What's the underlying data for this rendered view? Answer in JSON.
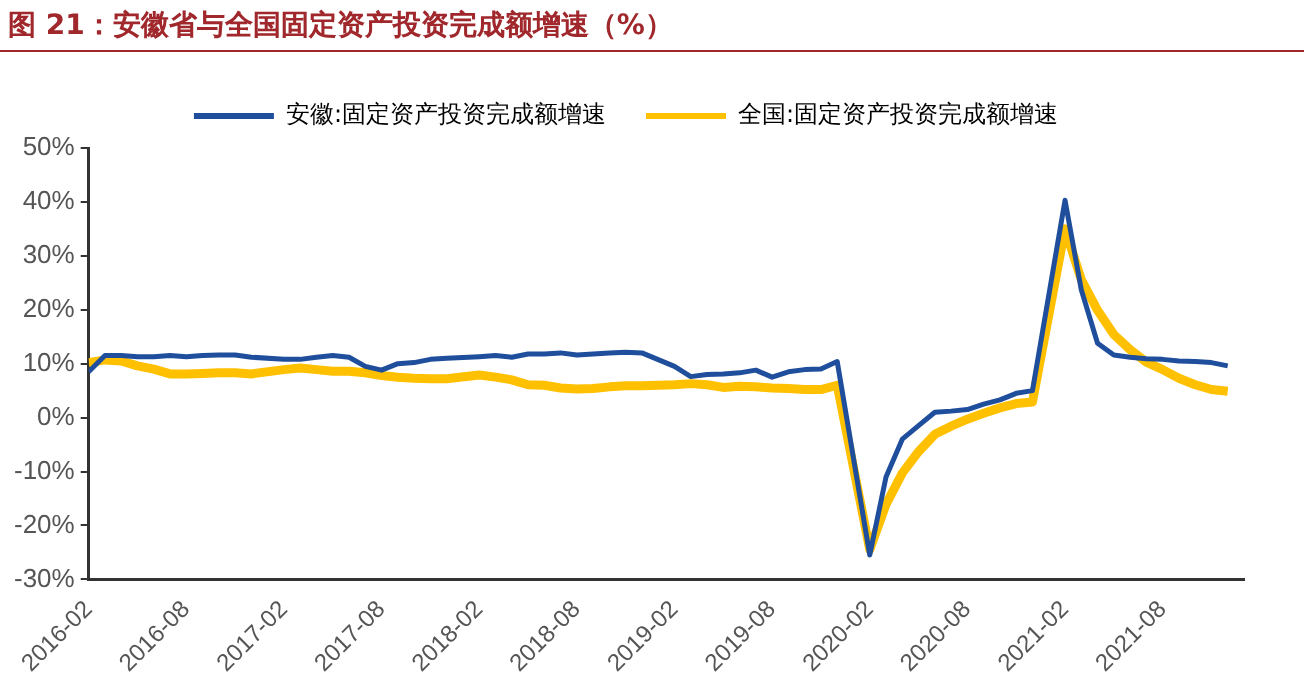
{
  "chart_data": {
    "type": "line",
    "title": "图 21：安徽省与全国固定资产投资完成额增速（%）",
    "x": [
      "2016-02",
      "2016-03",
      "2016-04",
      "2016-05",
      "2016-06",
      "2016-07",
      "2016-08",
      "2016-09",
      "2016-10",
      "2016-11",
      "2016-12",
      "2017-02",
      "2017-03",
      "2017-04",
      "2017-05",
      "2017-06",
      "2017-07",
      "2017-08",
      "2017-09",
      "2017-10",
      "2017-11",
      "2017-12",
      "2018-02",
      "2018-03",
      "2018-04",
      "2018-05",
      "2018-06",
      "2018-07",
      "2018-08",
      "2018-09",
      "2018-10",
      "2018-11",
      "2018-12",
      "2019-02",
      "2019-03",
      "2019-04",
      "2019-05",
      "2019-06",
      "2019-07",
      "2019-08",
      "2019-09",
      "2019-10",
      "2019-11",
      "2019-12",
      "2020-02",
      "2020-03",
      "2020-04",
      "2020-05",
      "2020-06",
      "2020-07",
      "2020-08",
      "2020-09",
      "2020-10",
      "2020-11",
      "2020-12",
      "2021-02",
      "2021-03",
      "2021-04",
      "2021-05",
      "2021-06",
      "2021-07",
      "2021-08",
      "2021-09",
      "2021-10",
      "2021-11",
      "2021-12"
    ],
    "series": [
      {
        "name": "安徽:固定资产投资完成额增速",
        "color": "#1f4e9c",
        "values": [
          8.5,
          11.5,
          11.5,
          11.3,
          11.3,
          11.5,
          11.3,
          11.5,
          11.6,
          11.6,
          11.2,
          10.8,
          10.8,
          11.2,
          11.5,
          11.2,
          9.5,
          8.8,
          10.0,
          10.2,
          10.8,
          11.0,
          11.3,
          11.5,
          11.2,
          11.8,
          11.8,
          12.0,
          11.6,
          11.8,
          12.0,
          12.1,
          12.0,
          9.5,
          7.6,
          8.0,
          8.1,
          8.3,
          8.8,
          7.5,
          8.5,
          8.9,
          9.0,
          10.4,
          -25.5,
          -11.0,
          -4.0,
          -1.5,
          1.0,
          1.2,
          1.5,
          2.5,
          3.3,
          4.5,
          5.0,
          40.3,
          23.7,
          13.8,
          11.6,
          11.2,
          10.9,
          10.8,
          10.5,
          10.4,
          10.2,
          9.6
        ]
      },
      {
        "name": "全国:固定资产投资完成额增速",
        "color": "#ffc000",
        "values": [
          10.2,
          10.7,
          10.5,
          9.6,
          9.0,
          8.1,
          8.1,
          8.2,
          8.3,
          8.3,
          8.1,
          8.9,
          9.2,
          8.9,
          8.6,
          8.6,
          8.3,
          7.8,
          7.5,
          7.3,
          7.2,
          7.2,
          7.9,
          7.5,
          7.0,
          6.1,
          6.0,
          5.5,
          5.3,
          5.4,
          5.7,
          5.9,
          5.9,
          6.1,
          6.3,
          6.1,
          5.6,
          5.8,
          5.7,
          5.5,
          5.4,
          5.2,
          5.2,
          6.0,
          -24.5,
          -16.1,
          -10.3,
          -6.3,
          -3.1,
          -1.6,
          -0.3,
          0.8,
          1.8,
          2.6,
          2.9,
          35.0,
          25.6,
          19.9,
          15.4,
          12.6,
          10.3,
          8.9,
          7.3,
          6.1,
          5.2,
          4.9
        ]
      }
    ],
    "xlim": [
      "2016-02",
      "2022-01"
    ],
    "xticks": [
      "2016-02",
      "2016-08",
      "2017-02",
      "2017-08",
      "2018-02",
      "2018-08",
      "2019-02",
      "2019-08",
      "2020-02",
      "2020-08",
      "2021-02",
      "2021-08"
    ],
    "ylim": [
      -30,
      50
    ],
    "yticks": [
      {
        "value": -30,
        "label": "-30%"
      },
      {
        "value": -20,
        "label": "-20%"
      },
      {
        "value": -10,
        "label": "-10%"
      },
      {
        "value": 0,
        "label": "0%"
      },
      {
        "value": 10,
        "label": "10%"
      },
      {
        "value": 20,
        "label": "20%"
      },
      {
        "value": 30,
        "label": "30%"
      },
      {
        "value": 40,
        "label": "40%"
      },
      {
        "value": 50,
        "label": "50%"
      }
    ],
    "grid": false,
    "legend": "top",
    "marker": "none",
    "line_style": "solid"
  }
}
